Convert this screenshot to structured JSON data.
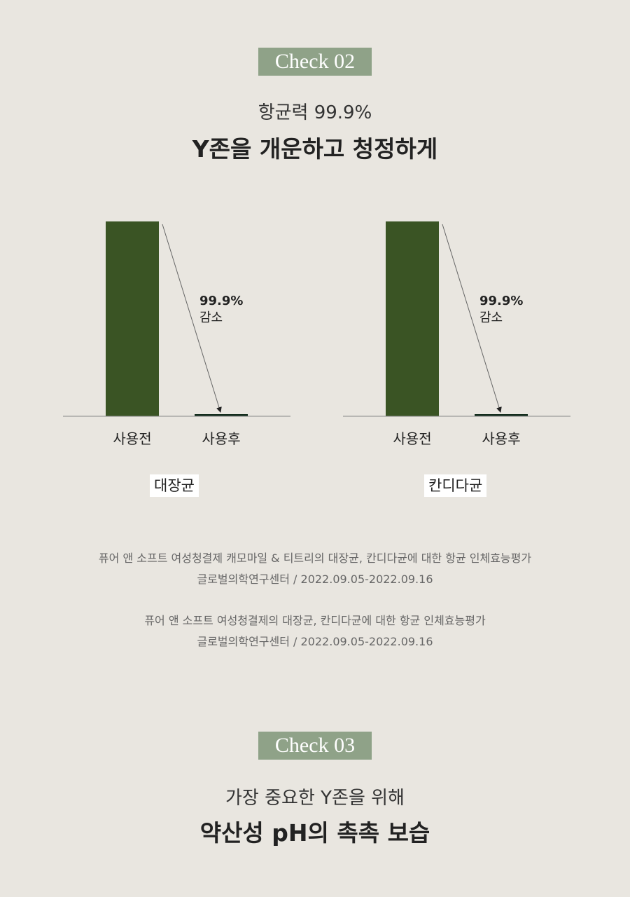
{
  "check2": {
    "badge": "Check 02",
    "subtitle": "항균력 99.9%",
    "title": "Y존을 개운하고 청정하게"
  },
  "colors": {
    "before": "#3a5424",
    "after": "#0f2a1a",
    "badge": "#8fa288"
  },
  "chart_data": [
    {
      "type": "bar",
      "title": "대장균",
      "categories": [
        "사용전",
        "사용후"
      ],
      "values": [
        100,
        0.1
      ],
      "annotation": {
        "value": "99.9%",
        "label": "감소"
      }
    },
    {
      "type": "bar",
      "title": "칸디다균",
      "categories": [
        "사용전",
        "사용후"
      ],
      "values": [
        100,
        0.1
      ],
      "annotation": {
        "value": "99.9%",
        "label": "감소"
      }
    }
  ],
  "notes": [
    {
      "line1": "퓨어 앤 소프트 여성청결제 캐모마일 & 티트리의 대장균, 칸디다균에 대한 항균 인체효능평가",
      "line2": "글로벌의학연구센터 /  2022.09.05-2022.09.16"
    },
    {
      "line1": "퓨어 앤 소프트 여성청결제의 대장균, 칸디다균에 대한 항균 인체효능평가",
      "line2": "글로벌의학연구센터 /  2022.09.05-2022.09.16"
    }
  ],
  "check3": {
    "badge": "Check 03",
    "subtitle": "가장 중요한 Y존을 위해",
    "title": "약산성 pH의 촉촉 보습"
  }
}
